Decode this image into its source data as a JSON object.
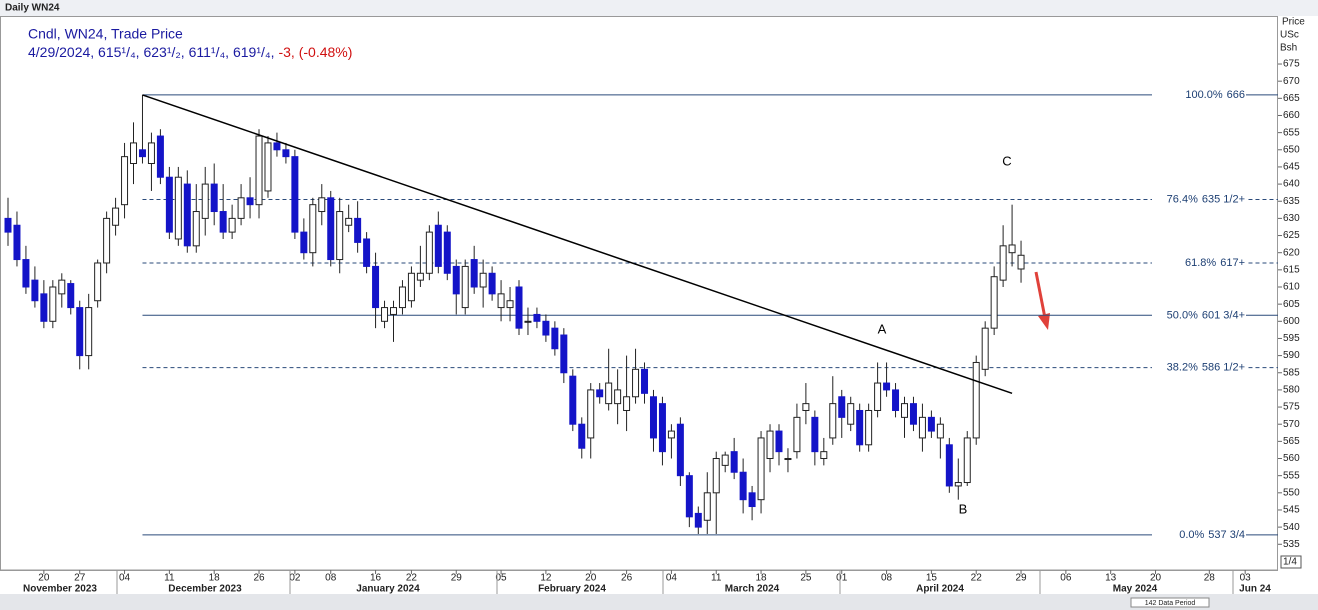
{
  "chart_data": {
    "type": "candlestick",
    "title": "Daily WN24",
    "legend_title": "Cndl, WN24, Trade Price",
    "legend_values": "4/29/2024, 615¹/₄, 623¹/₂, 611¹/₄, 619¹/₄,",
    "legend_change": "-3, (-0.48%)",
    "axis_header": [
      "Price",
      "USc",
      "Bsh"
    ],
    "up_color": "#ffffff",
    "down_color": "#1414c8",
    "x": [
      "2023-11-14",
      "2023-11-15",
      "2023-11-16",
      "2023-11-17",
      "2023-11-20",
      "2023-11-21",
      "2023-11-22",
      "2023-11-24",
      "2023-11-27",
      "2023-11-28",
      "2023-11-29",
      "2023-11-30",
      "2023-12-01",
      "2023-12-04",
      "2023-12-05",
      "2023-12-06",
      "2023-12-07",
      "2023-12-08",
      "2023-12-11",
      "2023-12-12",
      "2023-12-13",
      "2023-12-14",
      "2023-12-15",
      "2023-12-18",
      "2023-12-19",
      "2023-12-20",
      "2023-12-21",
      "2023-12-22",
      "2023-12-26",
      "2023-12-27",
      "2023-12-28",
      "2023-12-29",
      "2024-01-02",
      "2024-01-03",
      "2024-01-04",
      "2024-01-05",
      "2024-01-08",
      "2024-01-09",
      "2024-01-10",
      "2024-01-11",
      "2024-01-12",
      "2024-01-16",
      "2024-01-17",
      "2024-01-18",
      "2024-01-19",
      "2024-01-22",
      "2024-01-23",
      "2024-01-24",
      "2024-01-25",
      "2024-01-26",
      "2024-01-29",
      "2024-01-30",
      "2024-01-31",
      "2024-02-01",
      "2024-02-02",
      "2024-02-05",
      "2024-02-06",
      "2024-02-07",
      "2024-02-08",
      "2024-02-09",
      "2024-02-12",
      "2024-02-13",
      "2024-02-14",
      "2024-02-15",
      "2024-02-16",
      "2024-02-20",
      "2024-02-21",
      "2024-02-22",
      "2024-02-23",
      "2024-02-26",
      "2024-02-27",
      "2024-02-28",
      "2024-02-29",
      "2024-03-01",
      "2024-03-04",
      "2024-03-05",
      "2024-03-06",
      "2024-03-07",
      "2024-03-08",
      "2024-03-11",
      "2024-03-12",
      "2024-03-13",
      "2024-03-14",
      "2024-03-15",
      "2024-03-18",
      "2024-03-19",
      "2024-03-20",
      "2024-03-21",
      "2024-03-22",
      "2024-03-25",
      "2024-03-26",
      "2024-03-27",
      "2024-03-28",
      "2024-04-01",
      "2024-04-02",
      "2024-04-03",
      "2024-04-04",
      "2024-04-05",
      "2024-04-08",
      "2024-04-09",
      "2024-04-10",
      "2024-04-11",
      "2024-04-12",
      "2024-04-15",
      "2024-04-16",
      "2024-04-17",
      "2024-04-18",
      "2024-04-19",
      "2024-04-22",
      "2024-04-23",
      "2024-04-24",
      "2024-04-25",
      "2024-04-26",
      "2024-04-29"
    ],
    "ohlc": [
      [
        630,
        636,
        622,
        626
      ],
      [
        628,
        632,
        616,
        618
      ],
      [
        618,
        622,
        608,
        610
      ],
      [
        612,
        616,
        604,
        606
      ],
      [
        608,
        612,
        598,
        600
      ],
      [
        600,
        612,
        598,
        610
      ],
      [
        608,
        614,
        604,
        612
      ],
      [
        611,
        612,
        602,
        604
      ],
      [
        604,
        606,
        586,
        590
      ],
      [
        590,
        608,
        586,
        604
      ],
      [
        606,
        618,
        604,
        617
      ],
      [
        617,
        632,
        614,
        630
      ],
      [
        628,
        636,
        625,
        633
      ],
      [
        634,
        652,
        630,
        648
      ],
      [
        646,
        658,
        640,
        652
      ],
      [
        650,
        666,
        646,
        648
      ],
      [
        646,
        655,
        638,
        652
      ],
      [
        654,
        656,
        640,
        642
      ],
      [
        642,
        645,
        624,
        626
      ],
      [
        624,
        645,
        622,
        642
      ],
      [
        640,
        644,
        620,
        622
      ],
      [
        622,
        640,
        620,
        632
      ],
      [
        630,
        645,
        625,
        640
      ],
      [
        640,
        646,
        628,
        632
      ],
      [
        632,
        640,
        624,
        626
      ],
      [
        626,
        634,
        624,
        630
      ],
      [
        630,
        640,
        628,
        636
      ],
      [
        636,
        642,
        630,
        634
      ],
      [
        634,
        656,
        630,
        654
      ],
      [
        638,
        654,
        636,
        652
      ],
      [
        652,
        655,
        648,
        650
      ],
      [
        650,
        652,
        646,
        648
      ],
      [
        648,
        650,
        624,
        626
      ],
      [
        626,
        630,
        618,
        620
      ],
      [
        620,
        636,
        616,
        634
      ],
      [
        632,
        640,
        628,
        636
      ],
      [
        636,
        638,
        616,
        618
      ],
      [
        618,
        636,
        614,
        632
      ],
      [
        628,
        634,
        626,
        630
      ],
      [
        630,
        635,
        620,
        623
      ],
      [
        624,
        626,
        614,
        616
      ],
      [
        616,
        620,
        598,
        604
      ],
      [
        600,
        606,
        598,
        604
      ],
      [
        602,
        606,
        594,
        604
      ],
      [
        604,
        612,
        602,
        610
      ],
      [
        606,
        616,
        604,
        614
      ],
      [
        612,
        622,
        610,
        614
      ],
      [
        614,
        628,
        612,
        626
      ],
      [
        628,
        632,
        614,
        616
      ],
      [
        626,
        628,
        612,
        614
      ],
      [
        616,
        618,
        602,
        608
      ],
      [
        604,
        618,
        602,
        616
      ],
      [
        618,
        622,
        608,
        610
      ],
      [
        610,
        618,
        604,
        614
      ],
      [
        614,
        616,
        606,
        608
      ],
      [
        604,
        612,
        600,
        608
      ],
      [
        604,
        610,
        600,
        606
      ],
      [
        610,
        612,
        596,
        598
      ],
      [
        600,
        604,
        596,
        600
      ],
      [
        602,
        604,
        598,
        600
      ],
      [
        600,
        602,
        594,
        596
      ],
      [
        598,
        600,
        590,
        592
      ],
      [
        596,
        598,
        582,
        585
      ],
      [
        584,
        586,
        568,
        570
      ],
      [
        570,
        572,
        560,
        563
      ],
      [
        566,
        582,
        560,
        580
      ],
      [
        580,
        582,
        576,
        578
      ],
      [
        576,
        592,
        574,
        582
      ],
      [
        576,
        586,
        570,
        580
      ],
      [
        574,
        590,
        568,
        578
      ],
      [
        578,
        592,
        576,
        586
      ],
      [
        586,
        588,
        576,
        579
      ],
      [
        578,
        580,
        562,
        566
      ],
      [
        576,
        578,
        558,
        562
      ],
      [
        566,
        570,
        560,
        568
      ],
      [
        570,
        572,
        552,
        555
      ],
      [
        555,
        556,
        540,
        543
      ],
      [
        544,
        546,
        538,
        540
      ],
      [
        542,
        556,
        538,
        550
      ],
      [
        550,
        562,
        538,
        560
      ],
      [
        558,
        562,
        556,
        561
      ],
      [
        562,
        566,
        554,
        556
      ],
      [
        556,
        560,
        544,
        548
      ],
      [
        550,
        552,
        542,
        546
      ],
      [
        548,
        568,
        544,
        566
      ],
      [
        560,
        570,
        556,
        568
      ],
      [
        568,
        570,
        558,
        562
      ],
      [
        560,
        563,
        556,
        560
      ],
      [
        562,
        576,
        560,
        572
      ],
      [
        574,
        582,
        570,
        576
      ],
      [
        572,
        574,
        558,
        562
      ],
      [
        560,
        566,
        558,
        562
      ],
      [
        566,
        584,
        564,
        576
      ],
      [
        578,
        580,
        566,
        572
      ],
      [
        570,
        578,
        568,
        576
      ],
      [
        574,
        576,
        562,
        564
      ],
      [
        564,
        576,
        562,
        574
      ],
      [
        574,
        588,
        572,
        582
      ],
      [
        582,
        588,
        578,
        580
      ],
      [
        580,
        582,
        572,
        574
      ],
      [
        572,
        578,
        566,
        576
      ],
      [
        576,
        578,
        568,
        570
      ],
      [
        566,
        576,
        562,
        572
      ],
      [
        572,
        574,
        566,
        568
      ],
      [
        566,
        572,
        560,
        570
      ],
      [
        564,
        566,
        550,
        552
      ],
      [
        552,
        560,
        548,
        553
      ],
      [
        553,
        568,
        552,
        566
      ],
      [
        566,
        590,
        564,
        588
      ],
      [
        586,
        600,
        584,
        598
      ],
      [
        598,
        616,
        596,
        613
      ],
      [
        612,
        628,
        610,
        622
      ],
      [
        620,
        634,
        616,
        622.25
      ],
      [
        615.25,
        623.5,
        611.25,
        619.25
      ]
    ],
    "ylim": [
      527.5,
      689
    ],
    "yticks": [
      535,
      540,
      545,
      550,
      555,
      560,
      565,
      570,
      575,
      580,
      585,
      590,
      595,
      600,
      605,
      610,
      615,
      620,
      625,
      630,
      635,
      640,
      645,
      650,
      655,
      660,
      665,
      670,
      675
    ],
    "xticks": [
      {
        "value": "2023-11-20",
        "label": "20"
      },
      {
        "value": "2023-11-27",
        "label": "27"
      },
      {
        "value": "2023-12-04",
        "label": "04"
      },
      {
        "value": "2023-12-11",
        "label": "11"
      },
      {
        "value": "2023-12-18",
        "label": "18"
      },
      {
        "value": "2023-12-26",
        "label": "26"
      },
      {
        "value": "2024-01-02",
        "label": "02"
      },
      {
        "value": "2024-01-08",
        "label": "08"
      },
      {
        "value": "2024-01-16",
        "label": "16"
      },
      {
        "value": "2024-01-22",
        "label": "22"
      },
      {
        "value": "2024-01-29",
        "label": "29"
      },
      {
        "value": "2024-02-05",
        "label": "05"
      },
      {
        "value": "2024-02-12",
        "label": "12"
      },
      {
        "value": "2024-02-20",
        "label": "20"
      },
      {
        "value": "2024-02-26",
        "label": "26"
      },
      {
        "value": "2024-03-04",
        "label": "04"
      },
      {
        "value": "2024-03-11",
        "label": "11"
      },
      {
        "value": "2024-03-18",
        "label": "18"
      },
      {
        "value": "2024-03-25",
        "label": "25"
      },
      {
        "value": "2024-04-01",
        "label": "01"
      },
      {
        "value": "2024-04-08",
        "label": "08"
      },
      {
        "value": "2024-04-15",
        "label": "15"
      },
      {
        "value": "2024-04-22",
        "label": "22"
      },
      {
        "value": "2024-04-29",
        "label": "29"
      },
      {
        "value": "2024-05-06",
        "label": "06"
      },
      {
        "value": "2024-05-13",
        "label": "13"
      },
      {
        "value": "2024-05-20",
        "label": "20"
      },
      {
        "value": "2024-05-28",
        "label": "28"
      },
      {
        "value": "2024-06-03",
        "label": "03"
      }
    ],
    "months": [
      "November 2023",
      "December 2023",
      "January 2024",
      "February 2024",
      "March 2024",
      "April 2024",
      "May 2024",
      "Jun 24"
    ],
    "fib_levels": [
      {
        "pct": "100.0%",
        "label": "666",
        "value": 666,
        "dashed": false
      },
      {
        "pct": "76.4%",
        "label": "635 1/2+",
        "value": 635.5,
        "dashed": true
      },
      {
        "pct": "61.8%",
        "label": "617+",
        "value": 617,
        "dashed": true
      },
      {
        "pct": "50.0%",
        "label": "601 3/4+",
        "value": 601.75,
        "dashed": false
      },
      {
        "pct": "38.2%",
        "label": "586 1/2+",
        "value": 586.5,
        "dashed": true
      },
      {
        "pct": "0.0%",
        "label": "537 3/4",
        "value": 537.75,
        "dashed": false
      }
    ],
    "trendline": {
      "x": [
        "2023-12-06",
        "2024-04-26"
      ],
      "values": [
        666,
        579
      ]
    },
    "annotations": [
      "A",
      "B",
      "C"
    ],
    "footer_period": "142 Data Period",
    "footer_zoom": "1/4"
  }
}
